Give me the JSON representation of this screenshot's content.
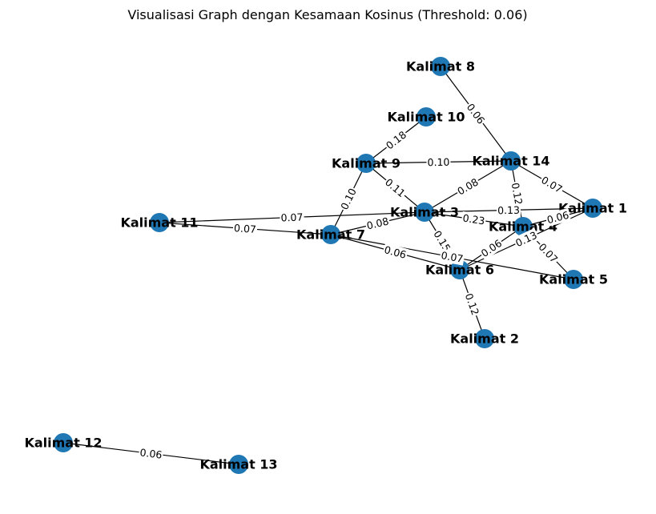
{
  "title": "Visualisasi Graph dengan Kesamaan Kosinus (Threshold: 0.06)",
  "nodes": [
    {
      "id": "k1",
      "label": "Kalimat 1"
    },
    {
      "id": "k2",
      "label": "Kalimat 2"
    },
    {
      "id": "k3",
      "label": "Kalimat 3"
    },
    {
      "id": "k4",
      "label": "Kalimat 4"
    },
    {
      "id": "k5",
      "label": "Kalimat 5"
    },
    {
      "id": "k6",
      "label": "Kalimat 6"
    },
    {
      "id": "k7",
      "label": "Kalimat 7"
    },
    {
      "id": "k8",
      "label": "Kalimat 8"
    },
    {
      "id": "k9",
      "label": "Kalimat 9"
    },
    {
      "id": "k10",
      "label": "Kalimat 10"
    },
    {
      "id": "k11",
      "label": "Kalimat 11"
    },
    {
      "id": "k12",
      "label": "Kalimat 12"
    },
    {
      "id": "k13",
      "label": "Kalimat 13"
    },
    {
      "id": "k14",
      "label": "Kalimat 14"
    }
  ],
  "edges": [
    {
      "source": "k8",
      "target": "k14",
      "label": "0.06"
    },
    {
      "source": "k10",
      "target": "k9",
      "label": "0.18"
    },
    {
      "source": "k9",
      "target": "k14",
      "label": "0.10"
    },
    {
      "source": "k14",
      "target": "k1",
      "label": "0.07"
    },
    {
      "source": "k14",
      "target": "k3",
      "label": "0.08"
    },
    {
      "source": "k14",
      "target": "k4",
      "label": "0.12"
    },
    {
      "source": "k9",
      "target": "k3",
      "label": "0.11"
    },
    {
      "source": "k9",
      "target": "k7",
      "label": "0.10"
    },
    {
      "source": "k3",
      "target": "k1",
      "label": "0.13"
    },
    {
      "source": "k11",
      "target": "k3",
      "label": "0.07"
    },
    {
      "source": "k11",
      "target": "k7",
      "label": "0.07"
    },
    {
      "source": "k7",
      "target": "k3",
      "label": "0.08"
    },
    {
      "source": "k3",
      "target": "k4",
      "label": "0.23"
    },
    {
      "source": "k3",
      "target": "k6",
      "label": "0.15"
    },
    {
      "source": "k7",
      "target": "k6",
      "label": "0.06"
    },
    {
      "source": "k7",
      "target": "k5",
      "label": "0.07"
    },
    {
      "source": "k6",
      "target": "k1",
      "label": "0.13"
    },
    {
      "source": "k1",
      "target": "k4",
      "label": "0.06"
    },
    {
      "source": "k6",
      "target": "k4",
      "label": "0.06"
    },
    {
      "source": "k4",
      "target": "k5",
      "label": "0.07"
    },
    {
      "source": "k6",
      "target": "k2",
      "label": "0.12"
    },
    {
      "source": "k12",
      "target": "k13",
      "label": "0.06"
    }
  ]
}
